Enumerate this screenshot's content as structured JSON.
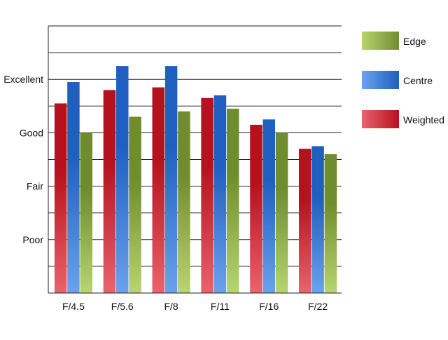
{
  "chart_data": {
    "type": "bar",
    "title": "",
    "xlabel": "",
    "ylabel": "",
    "categories": [
      "F/4.5",
      "F/5.6",
      "F/8",
      "F/11",
      "F/16",
      "F/22"
    ],
    "y_tick_labels": [
      {
        "value": 2,
        "label": "Poor"
      },
      {
        "value": 4,
        "label": "Fair"
      },
      {
        "value": 6,
        "label": "Good"
      },
      {
        "value": 8,
        "label": "Excellent"
      }
    ],
    "ylim": [
      0,
      10
    ],
    "grid_step": 1,
    "grid": true,
    "legend_position": "right",
    "series": [
      {
        "name": "Weighted",
        "values": [
          7.1,
          7.6,
          7.7,
          7.3,
          6.3,
          5.4
        ],
        "color_dark": "#b5111e",
        "color_light": "#e9636d"
      },
      {
        "name": "Centre",
        "values": [
          7.9,
          8.5,
          8.5,
          7.4,
          6.5,
          5.5
        ],
        "color_dark": "#1e5fc0",
        "color_light": "#6aa2ec"
      },
      {
        "name": "Edge",
        "values": [
          6.0,
          6.6,
          6.8,
          6.9,
          6.0,
          5.2
        ],
        "color_dark": "#6f8c2e",
        "color_light": "#b9d472"
      }
    ],
    "legend_order": [
      "Edge",
      "Centre",
      "Weighted"
    ]
  }
}
